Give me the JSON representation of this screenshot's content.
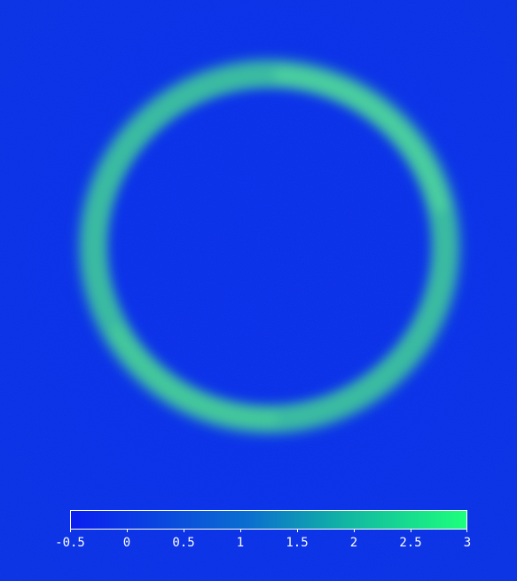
{
  "image": {
    "description_colors": {
      "background": "#0a2fe8",
      "ring": "#3ec495"
    }
  },
  "colorbar": {
    "min": -0.5,
    "max": 3,
    "color_low": "#0a1ef0",
    "color_high": "#1dff7c",
    "ticks": [
      {
        "value": -0.5,
        "label": "-0.5"
      },
      {
        "value": 0,
        "label": "0"
      },
      {
        "value": 0.5,
        "label": "0.5"
      },
      {
        "value": 1,
        "label": "1"
      },
      {
        "value": 1.5,
        "label": "1.5"
      },
      {
        "value": 2,
        "label": "2"
      },
      {
        "value": 2.5,
        "label": "2.5"
      },
      {
        "value": 3,
        "label": "3"
      }
    ]
  }
}
